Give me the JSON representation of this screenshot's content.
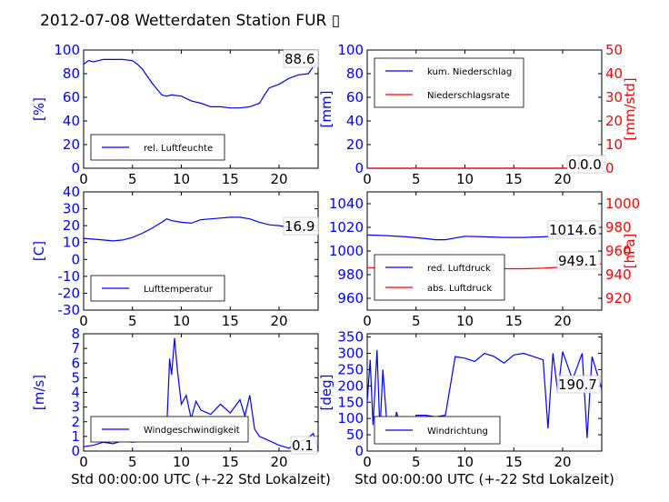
{
  "title": "2012-07-08 Wetterdaten Station FUR",
  "title_suffix_glyph": "▯",
  "colors": {
    "blue": "#0000ff",
    "red": "#ff0000",
    "light": "#9a9af0",
    "ann_edge": "#bbbbbb"
  },
  "chart_data": [
    {
      "id": "humidity",
      "type": "line",
      "xlim": [
        0,
        24
      ],
      "xticks": [
        0,
        5,
        10,
        15,
        20
      ],
      "ylim": [
        0,
        100
      ],
      "yticks": [
        0,
        20,
        40,
        60,
        80,
        100
      ],
      "ylabel": "[%]",
      "ylabel_color": "#0000ff",
      "legend": [
        "rel. Luftfeuchte"
      ],
      "legend_loc": "lower-left",
      "annotation": "88.6",
      "series": [
        {
          "name": "rel. Luftfeuchte",
          "color": "#0000ff",
          "x": [
            0,
            0.5,
            1,
            1.5,
            2,
            3,
            4,
            5,
            5.5,
            6,
            6.5,
            7,
            7.5,
            8,
            8.5,
            9,
            10,
            11,
            12,
            13,
            14,
            15,
            16,
            17,
            18,
            18.5,
            19,
            20,
            21,
            22,
            23,
            23.5,
            24
          ],
          "y": [
            88,
            91,
            90,
            91,
            92,
            92,
            92,
            91,
            88,
            84,
            78,
            72,
            67,
            62,
            61,
            62,
            61,
            57,
            55,
            52,
            52,
            51,
            51,
            52,
            55,
            62,
            68,
            71,
            76,
            79,
            80,
            86,
            88.6
          ]
        }
      ]
    },
    {
      "id": "precipitation",
      "type": "line",
      "xlim": [
        0,
        24
      ],
      "xticks": [
        0,
        5,
        10,
        15,
        20
      ],
      "ylim": [
        0,
        100
      ],
      "yticks": [
        0,
        20,
        40,
        60,
        80,
        100
      ],
      "ylabel": "[mm]",
      "ylabel_color": "#0000ff",
      "y2lim": [
        0,
        50
      ],
      "y2ticks": [
        0,
        10,
        20,
        30,
        40,
        50
      ],
      "y2label": "[mm/std]",
      "y2label_color": "#ff0000",
      "legend": [
        "kum. Niederschlag",
        "Niederschlagsrate"
      ],
      "legend_loc": "upper-left",
      "annotation": "0.0",
      "annotation2": "0.0",
      "series": [
        {
          "name": "kum. Niederschlag",
          "color": "#0000ff",
          "axis": "left",
          "x": [
            0,
            24
          ],
          "y": [
            0,
            0
          ]
        },
        {
          "name": "Niederschlagsrate",
          "color": "#ff0000",
          "axis": "right",
          "x": [
            0,
            24
          ],
          "y": [
            0,
            0
          ]
        }
      ]
    },
    {
      "id": "temperature",
      "type": "line",
      "xlim": [
        0,
        24
      ],
      "xticks": [
        0,
        5,
        10,
        15,
        20
      ],
      "ylim": [
        -30,
        40
      ],
      "yticks": [
        -30,
        -20,
        -10,
        0,
        10,
        20,
        30,
        40
      ],
      "ylabel": "[C]",
      "ylabel_color": "#0000ff",
      "legend": [
        "Lufttemperatur"
      ],
      "legend_loc": "lower-left",
      "annotation": "16.9",
      "series": [
        {
          "name": "Lufttemperatur",
          "color": "#0000ff",
          "x": [
            0,
            1,
            2,
            3,
            4,
            5,
            6,
            7,
            8,
            8.5,
            9,
            10,
            11,
            12,
            13,
            14,
            15,
            16,
            17,
            18,
            19,
            20,
            21,
            22,
            23,
            24
          ],
          "y": [
            12.5,
            12,
            11.5,
            11,
            11.5,
            13,
            15.5,
            18.5,
            22,
            24,
            23,
            22,
            21.5,
            23.5,
            24,
            24.5,
            25,
            25,
            24,
            22,
            20.5,
            20,
            19,
            18.5,
            17.5,
            16.9
          ]
        }
      ]
    },
    {
      "id": "pressure",
      "type": "line",
      "xlim": [
        0,
        24
      ],
      "xticks": [
        0,
        5,
        10,
        15,
        20
      ],
      "ylim": [
        950,
        1050
      ],
      "yticks": [
        960,
        980,
        1000,
        1020,
        1040
      ],
      "ylabel": "",
      "ylabel_color": "#0000ff",
      "y2lim": [
        910,
        1010
      ],
      "y2ticks": [
        920,
        940,
        960,
        980,
        1000
      ],
      "y2label": "[hPa]",
      "y2label_color": "#ff0000",
      "legend": [
        "red. Luftdruck",
        "abs. Luftdruck"
      ],
      "legend_loc": "lower-left",
      "annotation": "1014.6",
      "annotation2": "949.1",
      "series": [
        {
          "name": "red. Luftdruck",
          "color": "#0000ff",
          "axis": "left",
          "x": [
            0,
            2,
            4,
            6,
            7,
            8,
            9,
            10,
            12,
            14,
            16,
            18,
            20,
            22,
            24
          ],
          "y": [
            1013.5,
            1013,
            1012,
            1010.5,
            1009.5,
            1009.5,
            1011,
            1012.5,
            1012,
            1011.5,
            1011.5,
            1012,
            1013,
            1014,
            1014.6
          ]
        },
        {
          "name": "abs. Luftdruck",
          "color": "#ff0000",
          "axis": "right",
          "x": [
            0,
            2,
            4,
            6,
            7,
            8,
            9,
            10,
            12,
            14,
            16,
            18,
            20,
            22,
            24
          ],
          "y": [
            946,
            945.5,
            944.5,
            943.5,
            942.5,
            943,
            944,
            945,
            945,
            945,
            945,
            945.5,
            946.5,
            948,
            949.1
          ]
        }
      ]
    },
    {
      "id": "wind_speed",
      "type": "line",
      "xlim": [
        0,
        24
      ],
      "xticks": [
        0,
        5,
        10,
        15,
        20
      ],
      "ylim": [
        0,
        8
      ],
      "yticks": [
        0,
        1,
        2,
        3,
        4,
        5,
        6,
        7,
        8
      ],
      "ylabel": "[m/s]",
      "ylabel_color": "#0000ff",
      "xlabel": "Std 00:00:00 UTC (+-22 Std Lokalzeit)",
      "legend": [
        "Windgeschwindigkeit"
      ],
      "legend_loc": "lower-left",
      "annotation": "0.1",
      "series": [
        {
          "name": "Windgeschwindigkeit",
          "color": "#0000ff",
          "x": [
            0,
            1,
            2,
            3,
            4,
            5,
            6,
            7,
            8,
            8.5,
            8.8,
            9,
            9.3,
            9.6,
            10,
            10.5,
            11,
            11.5,
            12,
            13,
            14,
            15,
            16,
            16.5,
            17,
            17.5,
            18,
            19,
            20,
            21,
            22,
            23,
            23.5,
            24
          ],
          "y": [
            0.3,
            0.4,
            0.6,
            0.5,
            0.7,
            0.6,
            0.7,
            0.8,
            0.9,
            1.5,
            6.3,
            5.2,
            7.7,
            5.5,
            3.2,
            3.8,
            2.2,
            3.4,
            2.8,
            2.5,
            3.2,
            2.6,
            3.5,
            2.4,
            3.8,
            1.5,
            1.0,
            0.7,
            0.4,
            0.2,
            0.6,
            0.9,
            1.2,
            0.1
          ]
        }
      ]
    },
    {
      "id": "wind_direction",
      "type": "line",
      "xlim": [
        0,
        24
      ],
      "xticks": [
        0,
        5,
        10,
        15,
        20
      ],
      "ylim": [
        0,
        360
      ],
      "yticks": [
        0,
        50,
        100,
        150,
        200,
        250,
        300,
        350
      ],
      "ylabel": "[deg]",
      "ylabel_color": "#0000ff",
      "xlabel": "Std 00:00:00 UTC (+-22 Std Lokalzeit)",
      "legend": [
        "Windrichtung"
      ],
      "legend_loc": "lower-left",
      "annotation": "190.7",
      "series": [
        {
          "name": "Windrichtung",
          "color": "#0000ff",
          "x": [
            0,
            0.3,
            0.6,
            1,
            1.3,
            1.6,
            2,
            2.5,
            3,
            3.5,
            4,
            5,
            6,
            7,
            8,
            8.5,
            9,
            10,
            11,
            12,
            13,
            14,
            15,
            16,
            17,
            18,
            18.5,
            19,
            19.5,
            20,
            21,
            22,
            22.5,
            23,
            24
          ],
          "y": [
            150,
            280,
            80,
            310,
            60,
            250,
            90,
            40,
            120,
            60,
            30,
            110,
            110,
            105,
            110,
            200,
            290,
            285,
            275,
            300,
            290,
            270,
            295,
            300,
            290,
            280,
            70,
            300,
            180,
            305,
            220,
            300,
            40,
            290,
            190.7
          ]
        }
      ]
    }
  ]
}
